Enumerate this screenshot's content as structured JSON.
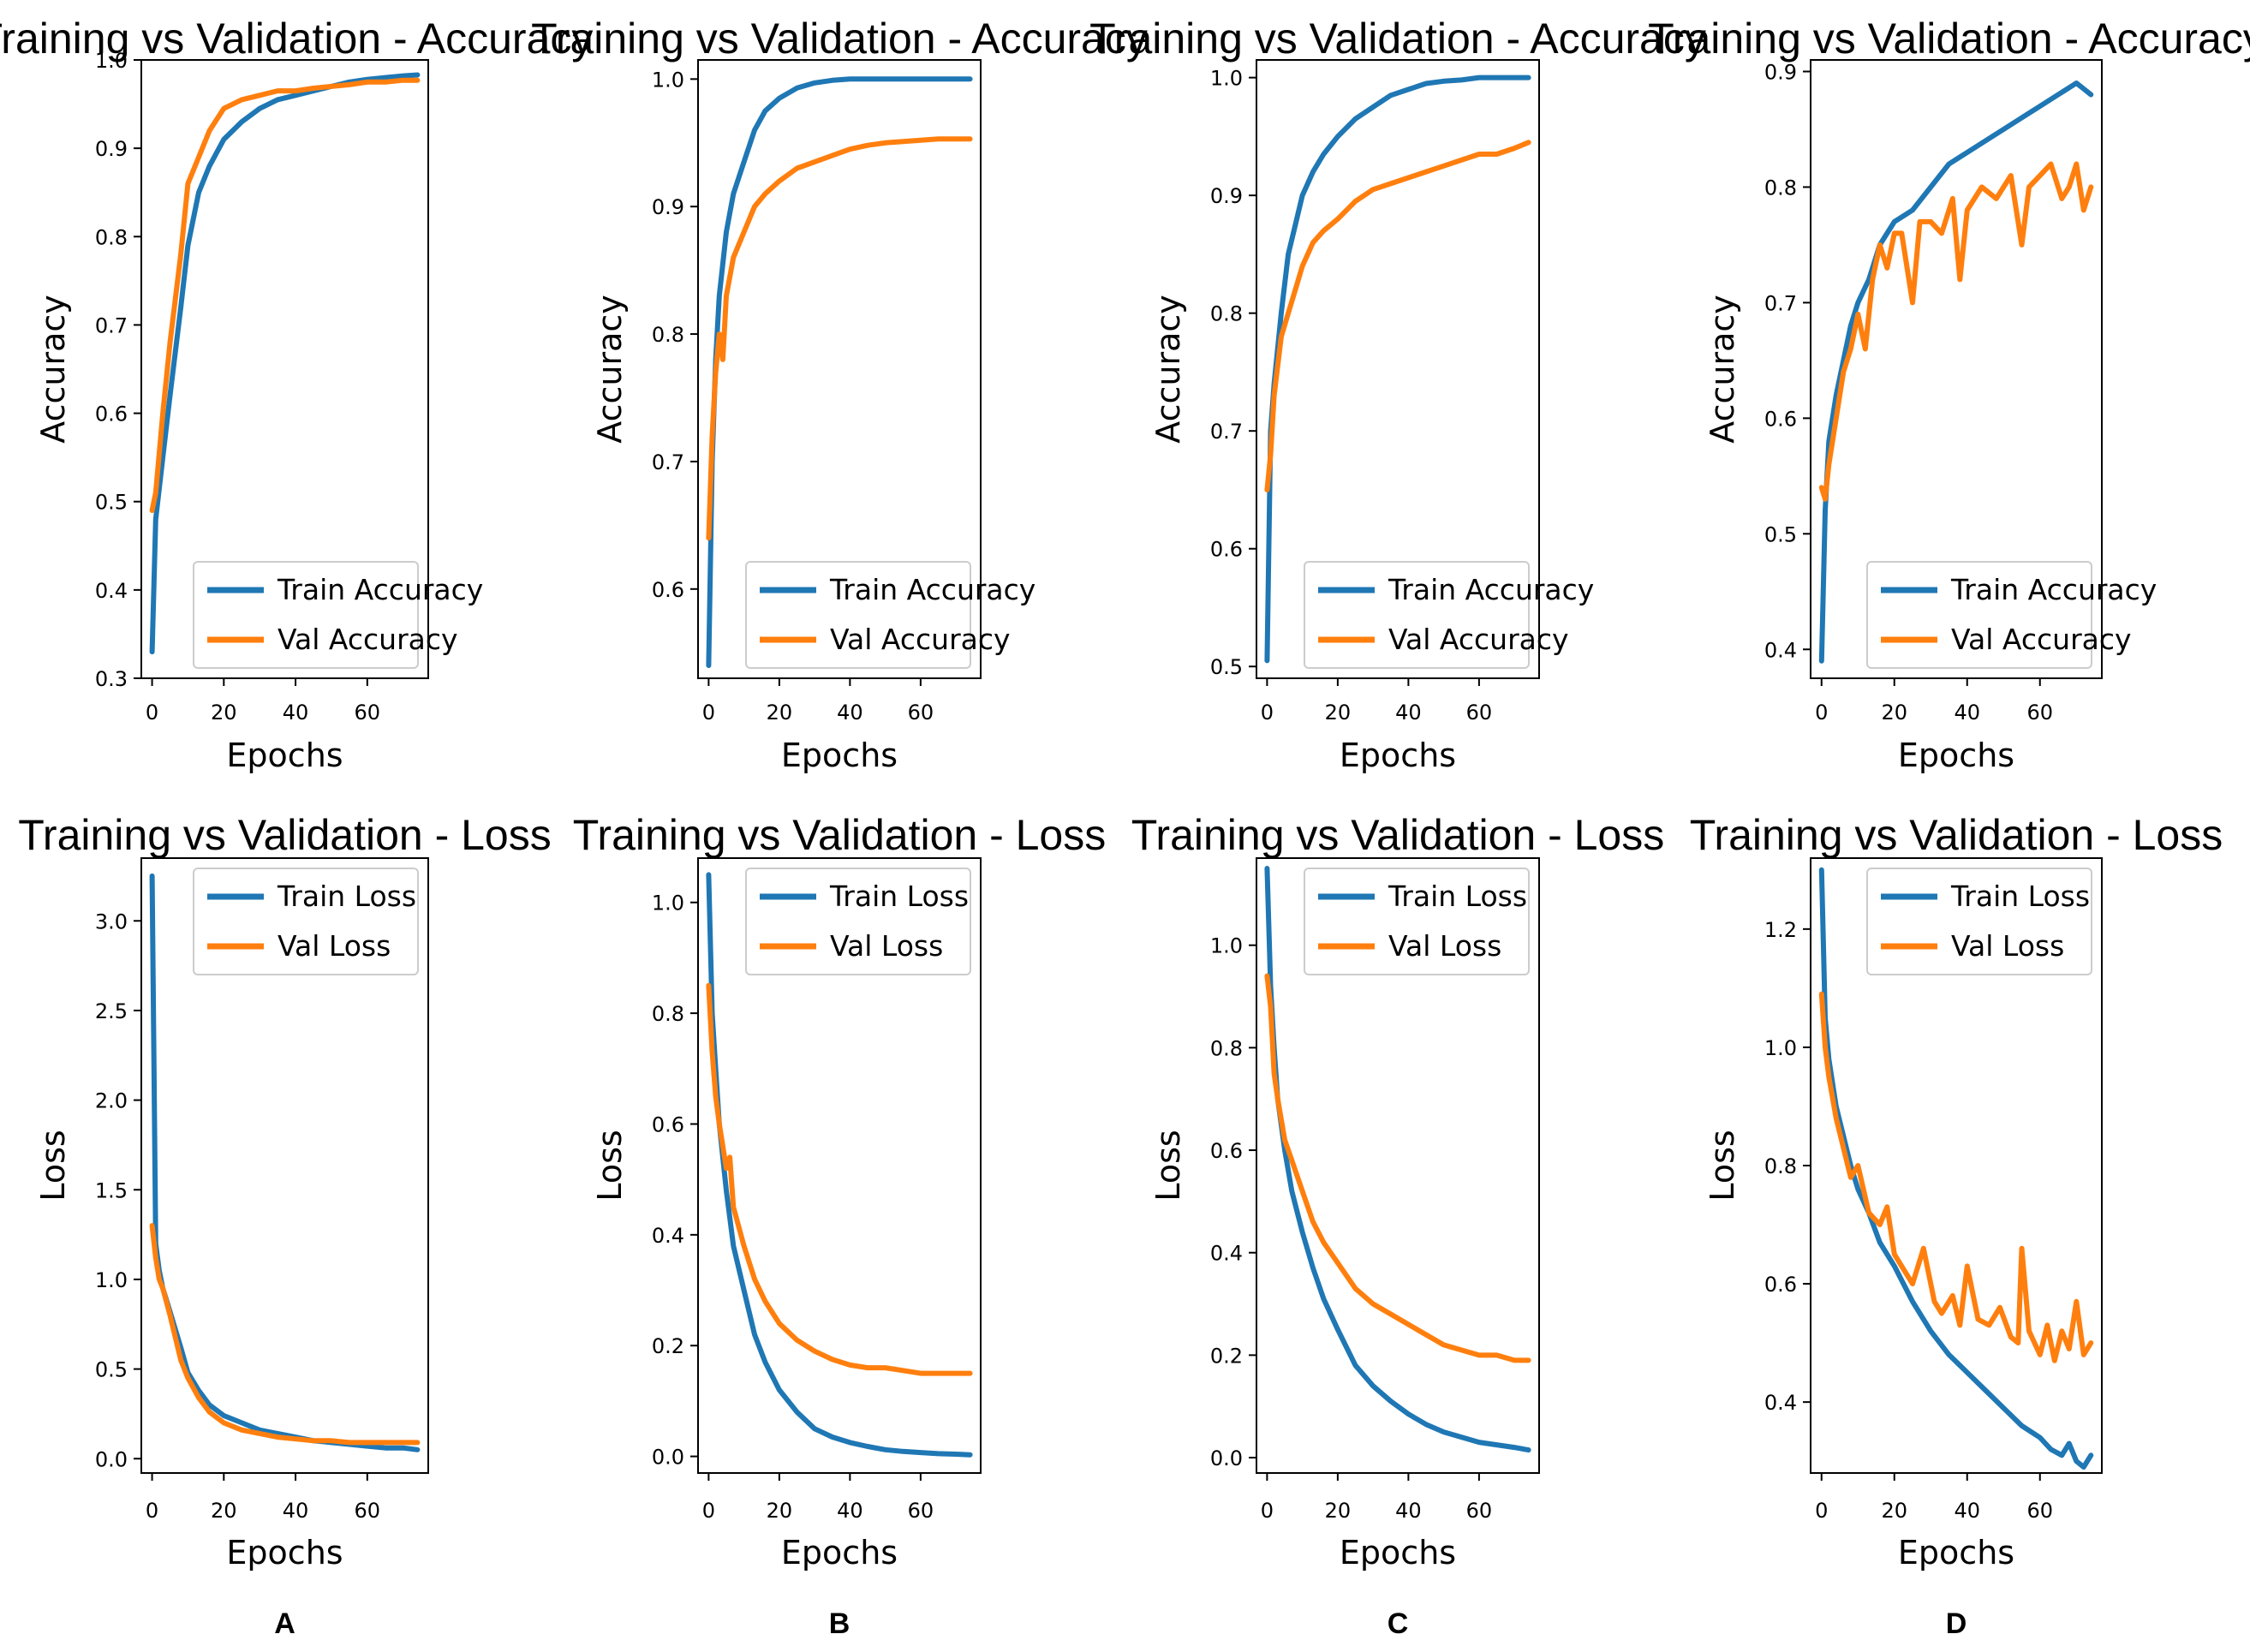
{
  "colors": {
    "train": "#1f77b4",
    "val": "#ff7f0e"
  },
  "panels": [
    "A",
    "B",
    "C",
    "D"
  ],
  "chart_data": [
    {
      "type": "line",
      "panel": "A",
      "metric": "accuracy",
      "title": "Training vs Validation - Accuracy",
      "xlabel": "Epochs",
      "ylabel": "Accuracy",
      "xlim": [
        -3,
        77
      ],
      "ylim": [
        0.3,
        1.0
      ],
      "xticks": [
        0,
        20,
        40,
        60
      ],
      "yticks": [
        0.3,
        0.4,
        0.5,
        0.6,
        0.7,
        0.8,
        0.9,
        1.0
      ],
      "legend": "lower-right",
      "series": [
        {
          "name": "Train Accuracy",
          "role": "train",
          "x": [
            0,
            1,
            3,
            5,
            8,
            10,
            13,
            16,
            20,
            25,
            30,
            35,
            40,
            45,
            50,
            55,
            60,
            65,
            70,
            74
          ],
          "y": [
            0.33,
            0.48,
            0.55,
            0.62,
            0.72,
            0.79,
            0.85,
            0.88,
            0.91,
            0.93,
            0.945,
            0.955,
            0.96,
            0.965,
            0.97,
            0.975,
            0.978,
            0.98,
            0.982,
            0.983
          ]
        },
        {
          "name": "Val Accuracy",
          "role": "val",
          "x": [
            0,
            1,
            3,
            5,
            8,
            10,
            13,
            16,
            20,
            25,
            30,
            35,
            40,
            45,
            50,
            55,
            60,
            65,
            70,
            74
          ],
          "y": [
            0.49,
            0.51,
            0.6,
            0.68,
            0.78,
            0.86,
            0.89,
            0.92,
            0.945,
            0.955,
            0.96,
            0.965,
            0.965,
            0.968,
            0.97,
            0.972,
            0.975,
            0.975,
            0.977,
            0.977
          ]
        }
      ]
    },
    {
      "type": "line",
      "panel": "B",
      "metric": "accuracy",
      "title": "Training vs Validation - Accuracy",
      "xlabel": "Epochs",
      "ylabel": "Accuracy",
      "xlim": [
        -3,
        77
      ],
      "ylim": [
        0.53,
        1.015
      ],
      "xticks": [
        0,
        20,
        40,
        60
      ],
      "yticks": [
        0.6,
        0.7,
        0.8,
        0.9,
        1.0
      ],
      "legend": "lower-right",
      "series": [
        {
          "name": "Train Accuracy",
          "role": "train",
          "x": [
            0,
            1,
            2,
            3,
            5,
            7,
            10,
            13,
            16,
            20,
            25,
            30,
            35,
            40,
            45,
            50,
            60,
            70,
            74
          ],
          "y": [
            0.54,
            0.7,
            0.78,
            0.83,
            0.88,
            0.91,
            0.935,
            0.96,
            0.975,
            0.985,
            0.993,
            0.997,
            0.999,
            1.0,
            1.0,
            1.0,
            1.0,
            1.0,
            1.0
          ]
        },
        {
          "name": "Val Accuracy",
          "role": "val",
          "x": [
            0,
            1,
            2,
            3,
            4,
            5,
            7,
            10,
            13,
            16,
            20,
            25,
            30,
            35,
            40,
            45,
            50,
            55,
            60,
            65,
            70,
            74
          ],
          "y": [
            0.64,
            0.72,
            0.77,
            0.8,
            0.78,
            0.83,
            0.86,
            0.88,
            0.9,
            0.91,
            0.92,
            0.93,
            0.935,
            0.94,
            0.945,
            0.948,
            0.95,
            0.951,
            0.952,
            0.953,
            0.953,
            0.953
          ]
        }
      ]
    },
    {
      "type": "line",
      "panel": "C",
      "metric": "accuracy",
      "title": "Training vs Validation - Accuracy",
      "xlabel": "Epochs",
      "ylabel": "Accuracy",
      "xlim": [
        -3,
        77
      ],
      "ylim": [
        0.49,
        1.015
      ],
      "xticks": [
        0,
        20,
        40,
        60
      ],
      "yticks": [
        0.5,
        0.6,
        0.7,
        0.8,
        0.9,
        1.0
      ],
      "legend": "lower-right",
      "series": [
        {
          "name": "Train Accuracy",
          "role": "train",
          "x": [
            0,
            1,
            2,
            4,
            6,
            8,
            10,
            13,
            16,
            20,
            25,
            30,
            35,
            40,
            45,
            50,
            55,
            60,
            65,
            70,
            74
          ],
          "y": [
            0.505,
            0.7,
            0.74,
            0.8,
            0.85,
            0.875,
            0.9,
            0.92,
            0.935,
            0.95,
            0.965,
            0.975,
            0.985,
            0.99,
            0.995,
            0.997,
            0.998,
            1.0,
            1.0,
            1.0,
            1.0
          ]
        },
        {
          "name": "Val Accuracy",
          "role": "val",
          "x": [
            0,
            1,
            2,
            4,
            6,
            8,
            10,
            13,
            16,
            20,
            25,
            30,
            35,
            40,
            45,
            50,
            55,
            60,
            65,
            70,
            74
          ],
          "y": [
            0.65,
            0.68,
            0.73,
            0.78,
            0.8,
            0.82,
            0.84,
            0.86,
            0.87,
            0.88,
            0.895,
            0.905,
            0.91,
            0.915,
            0.92,
            0.925,
            0.93,
            0.935,
            0.935,
            0.94,
            0.945
          ]
        }
      ]
    },
    {
      "type": "line",
      "panel": "D",
      "metric": "accuracy",
      "title": "Training vs Validation - Accuracy",
      "xlabel": "Epochs",
      "ylabel": "Accuracy",
      "xlim": [
        -3,
        77
      ],
      "ylim": [
        0.375,
        0.91
      ],
      "xticks": [
        0,
        20,
        40,
        60
      ],
      "yticks": [
        0.4,
        0.5,
        0.6,
        0.7,
        0.8,
        0.9
      ],
      "legend": "lower-right",
      "series": [
        {
          "name": "Train Accuracy",
          "role": "train",
          "x": [
            0,
            1,
            2,
            4,
            6,
            8,
            10,
            13,
            16,
            20,
            25,
            30,
            35,
            40,
            45,
            50,
            55,
            60,
            65,
            70,
            72,
            74
          ],
          "y": [
            0.39,
            0.52,
            0.58,
            0.62,
            0.65,
            0.68,
            0.7,
            0.72,
            0.75,
            0.77,
            0.78,
            0.8,
            0.82,
            0.83,
            0.84,
            0.85,
            0.86,
            0.87,
            0.88,
            0.89,
            0.885,
            0.88
          ]
        },
        {
          "name": "Val Accuracy",
          "role": "val",
          "x": [
            0,
            1,
            2,
            4,
            6,
            8,
            10,
            12,
            14,
            16,
            18,
            20,
            22,
            25,
            27,
            30,
            33,
            36,
            38,
            40,
            44,
            48,
            50,
            52,
            55,
            57,
            60,
            63,
            66,
            68,
            70,
            72,
            74
          ],
          "y": [
            0.54,
            0.53,
            0.56,
            0.6,
            0.64,
            0.66,
            0.69,
            0.66,
            0.72,
            0.75,
            0.73,
            0.76,
            0.76,
            0.7,
            0.77,
            0.77,
            0.76,
            0.79,
            0.72,
            0.78,
            0.8,
            0.79,
            0.8,
            0.81,
            0.75,
            0.8,
            0.81,
            0.82,
            0.79,
            0.8,
            0.82,
            0.78,
            0.8
          ]
        }
      ]
    },
    {
      "type": "line",
      "panel": "A",
      "metric": "loss",
      "title": "Training vs Validation - Loss",
      "xlabel": "Epochs",
      "ylabel": "Loss",
      "xlim": [
        -3,
        77
      ],
      "ylim": [
        -0.08,
        3.35
      ],
      "xticks": [
        0,
        20,
        40,
        60
      ],
      "yticks": [
        0.0,
        0.5,
        1.0,
        1.5,
        2.0,
        2.5,
        3.0
      ],
      "legend": "upper-right",
      "series": [
        {
          "name": "Train Loss",
          "role": "train",
          "x": [
            0,
            1,
            2,
            3,
            5,
            8,
            10,
            13,
            16,
            20,
            25,
            30,
            35,
            40,
            45,
            50,
            55,
            60,
            65,
            70,
            74
          ],
          "y": [
            3.25,
            1.2,
            1.05,
            0.95,
            0.82,
            0.62,
            0.48,
            0.38,
            0.3,
            0.24,
            0.2,
            0.16,
            0.14,
            0.12,
            0.1,
            0.09,
            0.08,
            0.07,
            0.06,
            0.06,
            0.05
          ]
        },
        {
          "name": "Val Loss",
          "role": "val",
          "x": [
            0,
            1,
            2,
            3,
            5,
            8,
            10,
            13,
            16,
            20,
            25,
            30,
            35,
            40,
            45,
            50,
            55,
            60,
            65,
            70,
            74
          ],
          "y": [
            1.3,
            1.12,
            1.0,
            0.95,
            0.8,
            0.55,
            0.45,
            0.34,
            0.26,
            0.2,
            0.16,
            0.14,
            0.12,
            0.11,
            0.1,
            0.1,
            0.09,
            0.09,
            0.09,
            0.09,
            0.09
          ]
        }
      ]
    },
    {
      "type": "line",
      "panel": "B",
      "metric": "loss",
      "title": "Training vs Validation - Loss",
      "xlabel": "Epochs",
      "ylabel": "Loss",
      "xlim": [
        -3,
        77
      ],
      "ylim": [
        -0.03,
        1.08
      ],
      "xticks": [
        0,
        20,
        40,
        60
      ],
      "yticks": [
        0.0,
        0.2,
        0.4,
        0.6,
        0.8,
        1.0
      ],
      "legend": "upper-right",
      "series": [
        {
          "name": "Train Loss",
          "role": "train",
          "x": [
            0,
            1,
            2,
            3,
            5,
            7,
            10,
            13,
            16,
            20,
            25,
            30,
            35,
            40,
            45,
            50,
            55,
            60,
            65,
            70,
            74
          ],
          "y": [
            1.05,
            0.8,
            0.7,
            0.6,
            0.48,
            0.38,
            0.3,
            0.22,
            0.17,
            0.12,
            0.08,
            0.05,
            0.035,
            0.025,
            0.018,
            0.012,
            0.009,
            0.007,
            0.005,
            0.004,
            0.003
          ]
        },
        {
          "name": "Val Loss",
          "role": "val",
          "x": [
            0,
            1,
            2,
            3,
            5,
            6,
            7,
            10,
            13,
            16,
            20,
            25,
            30,
            35,
            40,
            45,
            50,
            55,
            60,
            65,
            70,
            74
          ],
          "y": [
            0.85,
            0.73,
            0.65,
            0.6,
            0.52,
            0.54,
            0.45,
            0.38,
            0.32,
            0.28,
            0.24,
            0.21,
            0.19,
            0.175,
            0.165,
            0.16,
            0.16,
            0.155,
            0.15,
            0.15,
            0.15,
            0.15
          ]
        }
      ]
    },
    {
      "type": "line",
      "panel": "C",
      "metric": "loss",
      "title": "Training vs Validation - Loss",
      "xlabel": "Epochs",
      "ylabel": "Loss",
      "xlim": [
        -3,
        77
      ],
      "ylim": [
        -0.03,
        1.17
      ],
      "xticks": [
        0,
        20,
        40,
        60
      ],
      "yticks": [
        0.0,
        0.2,
        0.4,
        0.6,
        0.8,
        1.0
      ],
      "legend": "upper-right",
      "series": [
        {
          "name": "Train Loss",
          "role": "train",
          "x": [
            0,
            1,
            2,
            3,
            5,
            7,
            10,
            13,
            16,
            20,
            25,
            30,
            35,
            40,
            45,
            50,
            55,
            60,
            65,
            70,
            74
          ],
          "y": [
            1.15,
            0.92,
            0.8,
            0.7,
            0.6,
            0.52,
            0.44,
            0.37,
            0.31,
            0.25,
            0.18,
            0.14,
            0.11,
            0.085,
            0.065,
            0.05,
            0.04,
            0.03,
            0.025,
            0.02,
            0.015
          ]
        },
        {
          "name": "Val Loss",
          "role": "val",
          "x": [
            0,
            1,
            2,
            3,
            5,
            7,
            10,
            13,
            16,
            20,
            25,
            30,
            35,
            40,
            45,
            50,
            55,
            60,
            65,
            70,
            74
          ],
          "y": [
            0.94,
            0.88,
            0.75,
            0.7,
            0.62,
            0.58,
            0.52,
            0.46,
            0.42,
            0.38,
            0.33,
            0.3,
            0.28,
            0.26,
            0.24,
            0.22,
            0.21,
            0.2,
            0.2,
            0.19,
            0.19
          ]
        }
      ]
    },
    {
      "type": "line",
      "panel": "D",
      "metric": "loss",
      "title": "Training vs Validation - Loss",
      "xlabel": "Epochs",
      "ylabel": "Loss",
      "xlim": [
        -3,
        77
      ],
      "ylim": [
        0.28,
        1.32
      ],
      "xticks": [
        0,
        20,
        40,
        60
      ],
      "yticks": [
        0.4,
        0.6,
        0.8,
        1.0,
        1.2
      ],
      "legend": "upper-right",
      "series": [
        {
          "name": "Train Loss",
          "role": "train",
          "x": [
            0,
            1,
            2,
            4,
            6,
            8,
            10,
            13,
            16,
            20,
            25,
            30,
            35,
            40,
            45,
            50,
            55,
            60,
            63,
            66,
            68,
            70,
            72,
            74
          ],
          "y": [
            1.3,
            1.05,
            0.98,
            0.9,
            0.85,
            0.8,
            0.76,
            0.72,
            0.67,
            0.63,
            0.57,
            0.52,
            0.48,
            0.45,
            0.42,
            0.39,
            0.36,
            0.34,
            0.32,
            0.31,
            0.33,
            0.3,
            0.29,
            0.31
          ]
        },
        {
          "name": "Val Loss",
          "role": "val",
          "x": [
            0,
            1,
            2,
            4,
            6,
            8,
            10,
            13,
            16,
            18,
            20,
            23,
            25,
            28,
            31,
            33,
            36,
            38,
            40,
            43,
            46,
            49,
            52,
            54,
            55,
            57,
            60,
            62,
            64,
            66,
            68,
            70,
            72,
            74
          ],
          "y": [
            1.09,
            1.0,
            0.95,
            0.88,
            0.83,
            0.78,
            0.8,
            0.72,
            0.7,
            0.73,
            0.65,
            0.62,
            0.6,
            0.66,
            0.57,
            0.55,
            0.58,
            0.53,
            0.63,
            0.54,
            0.53,
            0.56,
            0.51,
            0.5,
            0.66,
            0.52,
            0.48,
            0.53,
            0.47,
            0.52,
            0.49,
            0.57,
            0.48,
            0.5
          ]
        }
      ]
    }
  ]
}
